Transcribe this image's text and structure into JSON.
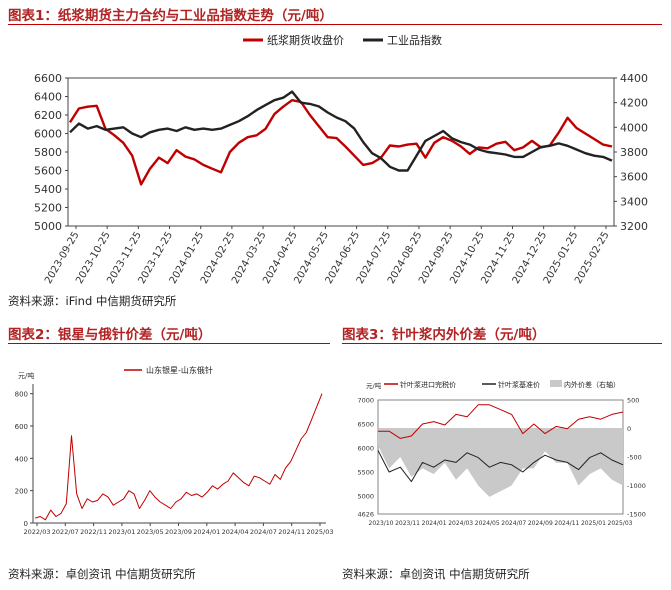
{
  "colors": {
    "title_red": "#b22222",
    "paper_red": "#c00000",
    "industrial_black": "#222222",
    "gray_fill": "#c9c9c9"
  },
  "fig1": {
    "title": "图表1：纸浆期货主力合约与工业品指数走势（元/吨）",
    "source": "资料来源：iFind  中信期货研究所",
    "chart_data": {
      "type": "line",
      "legend": [
        "纸浆期货收盘价",
        "工业品指数"
      ],
      "x_ticks": [
        "2023-09-25",
        "2023-10-25",
        "2023-11-25",
        "2023-12-25",
        "2024-01-25",
        "2024-02-25",
        "2024-03-25",
        "2024-04-25",
        "2024-05-25",
        "2024-06-25",
        "2024-07-25",
        "2024-08-25",
        "2024-09-25",
        "2024-10-25",
        "2024-11-25",
        "2024-12-25",
        "2025-01-25",
        "2025-02-25"
      ],
      "y_left_ticks": [
        "6600",
        "6400",
        "6200",
        "6000",
        "5800",
        "5600",
        "5400",
        "5200",
        "5000"
      ],
      "y_right_ticks": [
        "4400",
        "4200",
        "4000",
        "3800",
        "3600",
        "3400",
        "3200"
      ],
      "ylim_left": [
        5000,
        6600
      ],
      "ylim_right": [
        3200,
        4400
      ],
      "series": [
        {
          "name": "纸浆期货收盘价",
          "axis": "left",
          "color": "#c00000",
          "values": [
            6120,
            6270,
            6290,
            6300,
            6050,
            5980,
            5900,
            5760,
            5450,
            5620,
            5740,
            5680,
            5820,
            5750,
            5720,
            5660,
            5620,
            5580,
            5800,
            5900,
            5960,
            5980,
            6050,
            6210,
            6290,
            6360,
            6340,
            6200,
            6080,
            5960,
            5950,
            5860,
            5760,
            5660,
            5680,
            5740,
            5870,
            5860,
            5880,
            5890,
            5740,
            5900,
            5960,
            5920,
            5860,
            5780,
            5850,
            5840,
            5890,
            5910,
            5820,
            5850,
            5920,
            5850,
            5870,
            6010,
            6170,
            6060,
            6000,
            5940,
            5880,
            5860
          ]
        },
        {
          "name": "工业品指数",
          "axis": "right",
          "color": "#222222",
          "values": [
            3960,
            4030,
            3990,
            4010,
            3980,
            3990,
            4000,
            3950,
            3920,
            3960,
            3980,
            3990,
            3970,
            4000,
            3980,
            3990,
            3980,
            3990,
            4020,
            4050,
            4090,
            4140,
            4180,
            4220,
            4240,
            4290,
            4200,
            4190,
            4170,
            4120,
            4080,
            4050,
            3990,
            3880,
            3790,
            3750,
            3680,
            3650,
            3650,
            3770,
            3890,
            3930,
            3970,
            3910,
            3880,
            3860,
            3820,
            3800,
            3790,
            3780,
            3760,
            3760,
            3800,
            3840,
            3850,
            3870,
            3850,
            3820,
            3790,
            3770,
            3760,
            3730
          ]
        }
      ]
    }
  },
  "fig2": {
    "title": "图表2：银星与俄针价差（元/吨）",
    "source": "资料来源：卓创资讯  中信期货研究所",
    "chart_data": {
      "type": "line",
      "unit_label": "元/吨",
      "legend": [
        "山东银星-山东俄针"
      ],
      "x_ticks": [
        "2022/03",
        "2022/07",
        "2022/11",
        "2023/01",
        "2023/05",
        "2023/09",
        "2024/01",
        "2024/04",
        "2024/07",
        "2024/11",
        "2025/03"
      ],
      "y_ticks": [
        "800",
        "600",
        "400",
        "200",
        "0"
      ],
      "ylim": [
        0,
        860
      ],
      "series": [
        {
          "name": "山东银星-山东俄针",
          "color": "#c00000",
          "values": [
            30,
            40,
            20,
            80,
            40,
            60,
            120,
            540,
            180,
            90,
            150,
            130,
            140,
            180,
            160,
            110,
            130,
            150,
            200,
            180,
            90,
            140,
            200,
            160,
            130,
            110,
            90,
            130,
            150,
            190,
            170,
            180,
            160,
            190,
            230,
            210,
            240,
            260,
            310,
            280,
            250,
            230,
            290,
            280,
            260,
            240,
            300,
            270,
            340,
            380,
            450,
            520,
            560,
            640,
            720,
            800
          ]
        }
      ]
    }
  },
  "fig3": {
    "title": "图表3：针叶浆内外价差（元/吨）",
    "source": "资料来源：卓创资讯  中信期货研究所",
    "chart_data": {
      "type": "line",
      "unit_label": "元/吨",
      "legend": [
        "针叶浆进口完税价",
        "针叶浆基准价",
        "内外价差（右轴）"
      ],
      "x_ticks": [
        "2023/10",
        "2023/11",
        "2024/01",
        "2024/03",
        "2024/05",
        "2024/07",
        "2024/09",
        "2024/11",
        "2025/01",
        "2025/03"
      ],
      "y_left_ticks": [
        "7000",
        "6500",
        "6000",
        "5500",
        "5000",
        "4626"
      ],
      "y_right_ticks": [
        "500",
        "0",
        "-500",
        "-1000",
        "-1500"
      ],
      "ylim_left": [
        4626,
        7000
      ],
      "ylim_right": [
        -1500,
        500
      ],
      "series": [
        {
          "name": "针叶浆进口完税价",
          "axis": "left",
          "color": "#c00000",
          "values": [
            6350,
            6350,
            6200,
            6250,
            6500,
            6550,
            6480,
            6700,
            6650,
            6900,
            6900,
            6800,
            6700,
            6300,
            6500,
            6300,
            6450,
            6400,
            6600,
            6650,
            6600,
            6700,
            6750
          ]
        },
        {
          "name": "针叶浆基准价",
          "axis": "left",
          "color": "#222222",
          "values": [
            5950,
            5500,
            5600,
            5300,
            5700,
            5600,
            5750,
            5700,
            5900,
            5800,
            5600,
            5700,
            5650,
            5500,
            5700,
            5850,
            5750,
            5700,
            5550,
            5800,
            5900,
            5750,
            5650
          ]
        },
        {
          "name": "内外价差（右轴）",
          "axis": "right",
          "color": "#c9c9c9",
          "values": [
            -300,
            -700,
            -500,
            -850,
            -700,
            -800,
            -600,
            -900,
            -700,
            -1000,
            -1200,
            -1100,
            -1000,
            -700,
            -700,
            -400,
            -600,
            -600,
            -1000,
            -800,
            -700,
            -900,
            -1000
          ]
        }
      ]
    }
  }
}
